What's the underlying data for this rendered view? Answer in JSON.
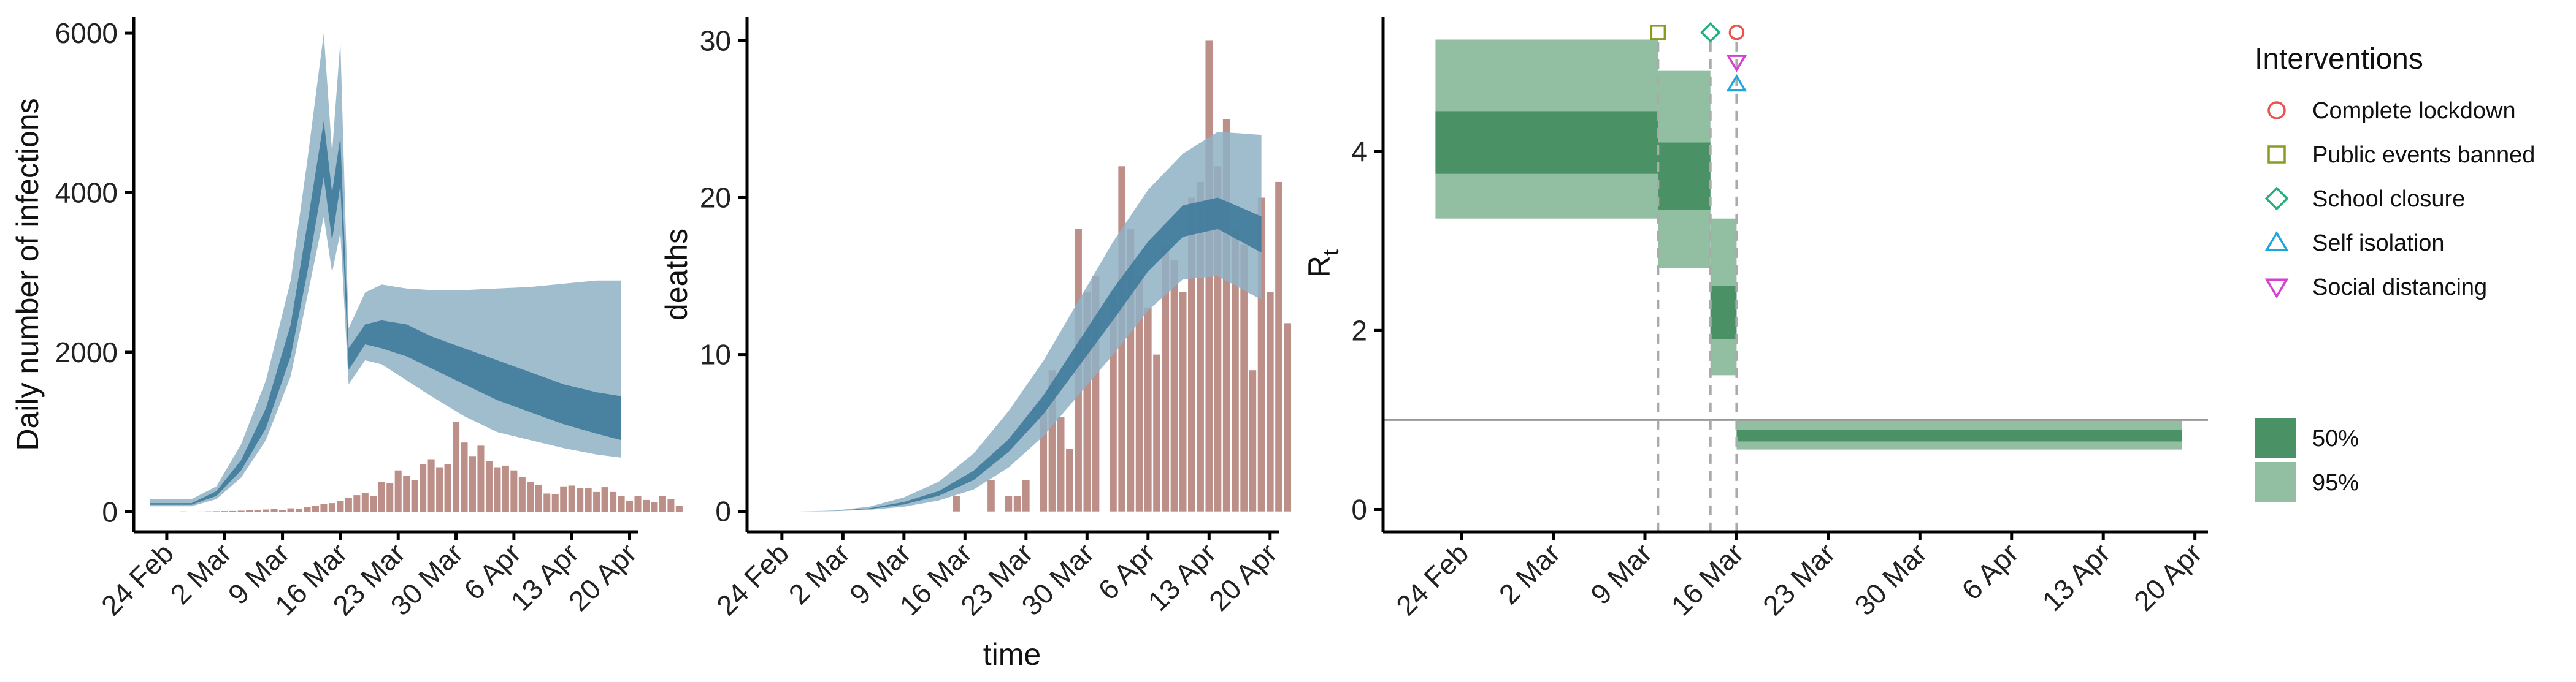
{
  "chart_data": [
    {
      "type": "area",
      "ylabel": "Daily number of infections",
      "xlabel": "",
      "x_ticks": [
        "24 Feb",
        "2 Mar",
        "9 Mar",
        "16 Mar",
        "23 Mar",
        "30 Mar",
        "6 Apr",
        "13 Apr",
        "20 Apr"
      ],
      "x_range": [
        "2020-02-20",
        "2020-04-21"
      ],
      "ylim": [
        -250,
        6200
      ],
      "y_ticks": [
        0,
        2000,
        4000,
        6000
      ],
      "colors": {
        "band_95": "#8fb2c5",
        "band_50": "#3f7a9b",
        "bars": "#bc8f88"
      },
      "bands": {
        "dates": [
          "2020-02-22",
          "2020-02-26",
          "2020-02-27",
          "2020-03-01",
          "2020-03-04",
          "2020-03-07",
          "2020-03-10",
          "2020-03-12",
          "2020-03-14",
          "2020-03-15",
          "2020-03-16",
          "2020-03-17",
          "2020-03-19",
          "2020-03-21",
          "2020-03-24",
          "2020-03-27",
          "2020-03-31",
          "2020-04-04",
          "2020-04-08",
          "2020-04-12",
          "2020-04-16",
          "2020-04-19"
        ],
        "low_95": [
          70,
          70,
          70,
          160,
          430,
          900,
          1700,
          2700,
          3700,
          3000,
          3500,
          1600,
          1900,
          1850,
          1650,
          1450,
          1200,
          1000,
          900,
          800,
          720,
          680
        ],
        "low_50": [
          90,
          90,
          90,
          200,
          520,
          1050,
          1950,
          3000,
          4200,
          3400,
          4100,
          1780,
          2100,
          2050,
          1950,
          1800,
          1600,
          1400,
          1250,
          1100,
          980,
          900
        ],
        "high_50": [
          110,
          110,
          110,
          260,
          650,
          1300,
          2350,
          3600,
          4900,
          4000,
          4700,
          2050,
          2350,
          2400,
          2350,
          2200,
          2050,
          1900,
          1750,
          1600,
          1500,
          1450
        ],
        "high_95": [
          160,
          160,
          160,
          320,
          850,
          1650,
          2900,
          4400,
          6000,
          4500,
          5900,
          2300,
          2750,
          2850,
          2800,
          2780,
          2780,
          2800,
          2820,
          2860,
          2900,
          2900
        ]
      },
      "bars": {
        "start": "2020-02-26",
        "values": [
          5,
          3,
          4,
          6,
          8,
          10,
          12,
          15,
          20,
          25,
          30,
          35,
          20,
          45,
          40,
          60,
          80,
          100,
          110,
          140,
          180,
          210,
          240,
          200,
          380,
          360,
          520,
          450,
          400,
          600,
          660,
          560,
          600,
          1130,
          870,
          700,
          830,
          640,
          560,
          580,
          520,
          440,
          380,
          340,
          230,
          220,
          320,
          330,
          300,
          300,
          250,
          310,
          250,
          200,
          140,
          200,
          150,
          120,
          200,
          160,
          80
        ]
      }
    },
    {
      "type": "area",
      "ylabel": "deaths",
      "xlabel": "time",
      "x_ticks": [
        "24 Feb",
        "2 Mar",
        "9 Mar",
        "16 Mar",
        "23 Mar",
        "30 Mar",
        "6 Apr",
        "13 Apr",
        "20 Apr"
      ],
      "x_range": [
        "2020-02-20",
        "2020-04-21"
      ],
      "ylim": [
        -1.3,
        31.5
      ],
      "y_ticks": [
        0,
        10,
        20,
        30
      ],
      "colors": {
        "band_95": "#8fb2c5",
        "band_50": "#3f7a9b",
        "bars": "#bc8f88"
      },
      "bands": {
        "dates": [
          "2020-02-26",
          "2020-03-01",
          "2020-03-05",
          "2020-03-09",
          "2020-03-13",
          "2020-03-17",
          "2020-03-21",
          "2020-03-25",
          "2020-03-29",
          "2020-04-02",
          "2020-04-06",
          "2020-04-10",
          "2020-04-14",
          "2020-04-19"
        ],
        "low_95": [
          0,
          0.02,
          0.1,
          0.3,
          0.7,
          1.4,
          2.8,
          4.8,
          7.4,
          10.0,
          12.8,
          14.8,
          15.0,
          13.5
        ],
        "low_50": [
          0,
          0.03,
          0.15,
          0.45,
          1.0,
          2.0,
          3.8,
          6.2,
          9.2,
          12.2,
          15.3,
          17.5,
          18.0,
          16.5
        ],
        "high_50": [
          0,
          0.04,
          0.2,
          0.6,
          1.3,
          2.6,
          4.6,
          7.4,
          10.8,
          14.2,
          17.2,
          19.5,
          20.0,
          18.8
        ],
        "high_95": [
          0,
          0.06,
          0.3,
          0.9,
          1.9,
          3.7,
          6.4,
          9.6,
          13.4,
          17.2,
          20.5,
          22.8,
          24.2,
          24.0
        ]
      },
      "bars": {
        "start": "2020-03-14",
        "values": [
          0,
          1,
          0,
          0,
          0,
          2,
          0,
          1,
          1,
          2,
          0,
          7,
          9,
          6,
          4,
          18,
          14,
          15,
          0,
          14,
          22,
          18,
          15,
          13,
          10,
          17,
          16,
          14,
          20,
          21,
          30,
          22,
          25,
          18,
          17,
          9,
          20,
          14,
          21,
          12
        ]
      }
    },
    {
      "type": "area",
      "ylabel": "Rt",
      "xlabel": "",
      "x_ticks": [
        "24 Feb",
        "2 Mar",
        "9 Mar",
        "16 Mar",
        "23 Mar",
        "30 Mar",
        "6 Apr",
        "13 Apr",
        "20 Apr"
      ],
      "x_range": [
        "2020-02-18",
        "2020-04-21"
      ],
      "ylim": [
        -0.25,
        5.5
      ],
      "y_ticks": [
        0,
        2,
        4
      ],
      "reference_line": 1,
      "colors": {
        "band_95": "#92bfa1",
        "band_50": "#4a9166",
        "interval_dash": "#aaaaaa",
        "reference": "#999999"
      },
      "segments": [
        {
          "from": "2020-02-22",
          "to": "2020-03-10",
          "low_95": 3.25,
          "high_95": 5.25,
          "low_50": 3.75,
          "high_50": 4.45
        },
        {
          "from": "2020-03-10",
          "to": "2020-03-14",
          "low_95": 2.7,
          "high_95": 4.9,
          "low_50": 3.35,
          "high_50": 4.1
        },
        {
          "from": "2020-03-14",
          "to": "2020-03-16",
          "low_95": 1.5,
          "high_95": 3.25,
          "low_50": 1.9,
          "high_50": 2.5
        },
        {
          "from": "2020-03-16",
          "to": "2020-04-19",
          "low_95": 0.67,
          "high_95": 1.0,
          "low_50": 0.76,
          "high_50": 0.89
        }
      ],
      "intervention_lines": [
        "2020-03-10",
        "2020-03-14",
        "2020-03-16"
      ],
      "intervention_markers": [
        {
          "name": "Public events banned",
          "date": "2020-03-10",
          "y": 5.33
        },
        {
          "name": "School closure",
          "date": "2020-03-14",
          "y": 5.33
        },
        {
          "name": "Complete lockdown",
          "date": "2020-03-16",
          "y": 5.33
        },
        {
          "name": "Social distancing",
          "date": "2020-03-16",
          "y": 5.0
        },
        {
          "name": "Self isolation",
          "date": "2020-03-16",
          "y": 4.75
        }
      ]
    }
  ],
  "legend": {
    "title": "Interventions",
    "items": [
      {
        "label": "Complete lockdown",
        "shape": "circle",
        "color": "#e8534f"
      },
      {
        "label": "Public events banned",
        "shape": "square",
        "color": "#8c9a1e"
      },
      {
        "label": "School closure",
        "shape": "diamond",
        "color": "#24b07a"
      },
      {
        "label": "Self isolation",
        "shape": "triangle-up",
        "color": "#1ea6e0"
      },
      {
        "label": "Social distancing",
        "shape": "triangle-down",
        "color": "#d63fd2"
      }
    ],
    "bands": [
      {
        "label": "50%",
        "color": "#4a9166"
      },
      {
        "label": "95%",
        "color": "#92bfa1"
      }
    ]
  }
}
